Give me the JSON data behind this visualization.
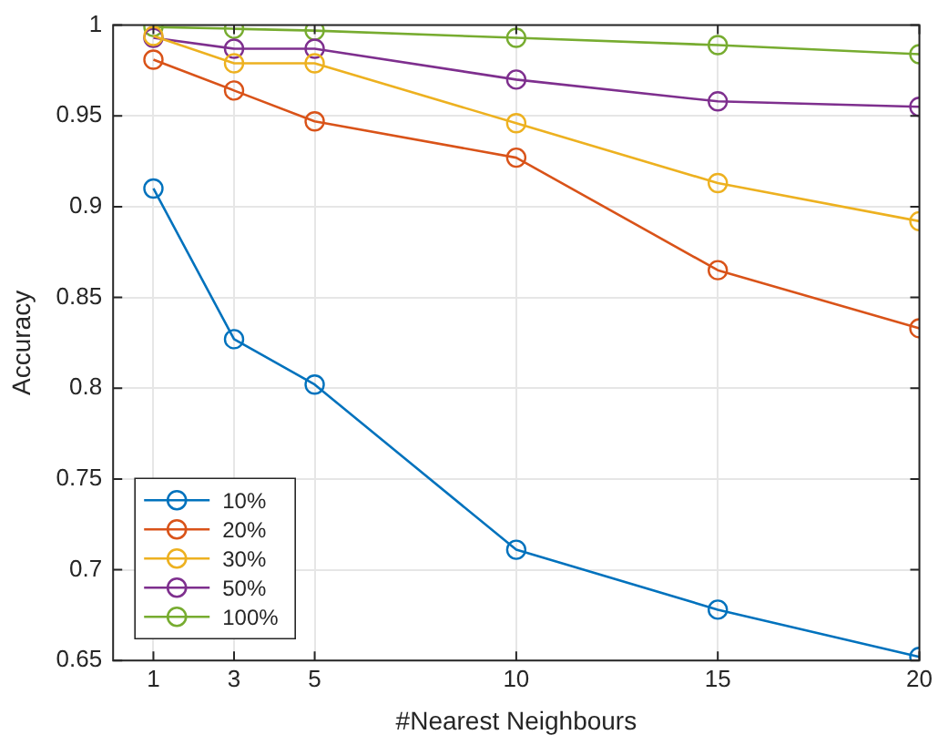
{
  "chart_data": {
    "type": "line",
    "xlabel": "#Nearest Neighbours",
    "ylabel": "Accuracy",
    "x": [
      1,
      3,
      5,
      10,
      15,
      20
    ],
    "series": [
      {
        "name": "10%",
        "color": "#0072bd",
        "values": [
          0.91,
          0.827,
          0.802,
          0.711,
          0.678,
          0.652
        ]
      },
      {
        "name": "20%",
        "color": "#d95319",
        "values": [
          0.981,
          0.964,
          0.947,
          0.927,
          0.865,
          0.833
        ]
      },
      {
        "name": "30%",
        "color": "#edb120",
        "values": [
          0.994,
          0.979,
          0.979,
          0.946,
          0.913,
          0.892
        ]
      },
      {
        "name": "50%",
        "color": "#7e2f8e",
        "values": [
          0.993,
          0.987,
          0.987,
          0.97,
          0.958,
          0.955
        ]
      },
      {
        "name": "100%",
        "color": "#77ac30",
        "values": [
          0.999,
          0.998,
          0.997,
          0.993,
          0.989,
          0.984
        ]
      }
    ],
    "xlim": [
      0,
      20
    ],
    "xticks": [
      1,
      3,
      5,
      10,
      15,
      20
    ],
    "ylim": [
      0.65,
      1
    ],
    "yticks": [
      0.65,
      0.7,
      0.75,
      0.8,
      0.85,
      0.9,
      0.95,
      1
    ],
    "grid": true,
    "legend": "bottom left",
    "marker": "circle",
    "line_style": "solid"
  }
}
